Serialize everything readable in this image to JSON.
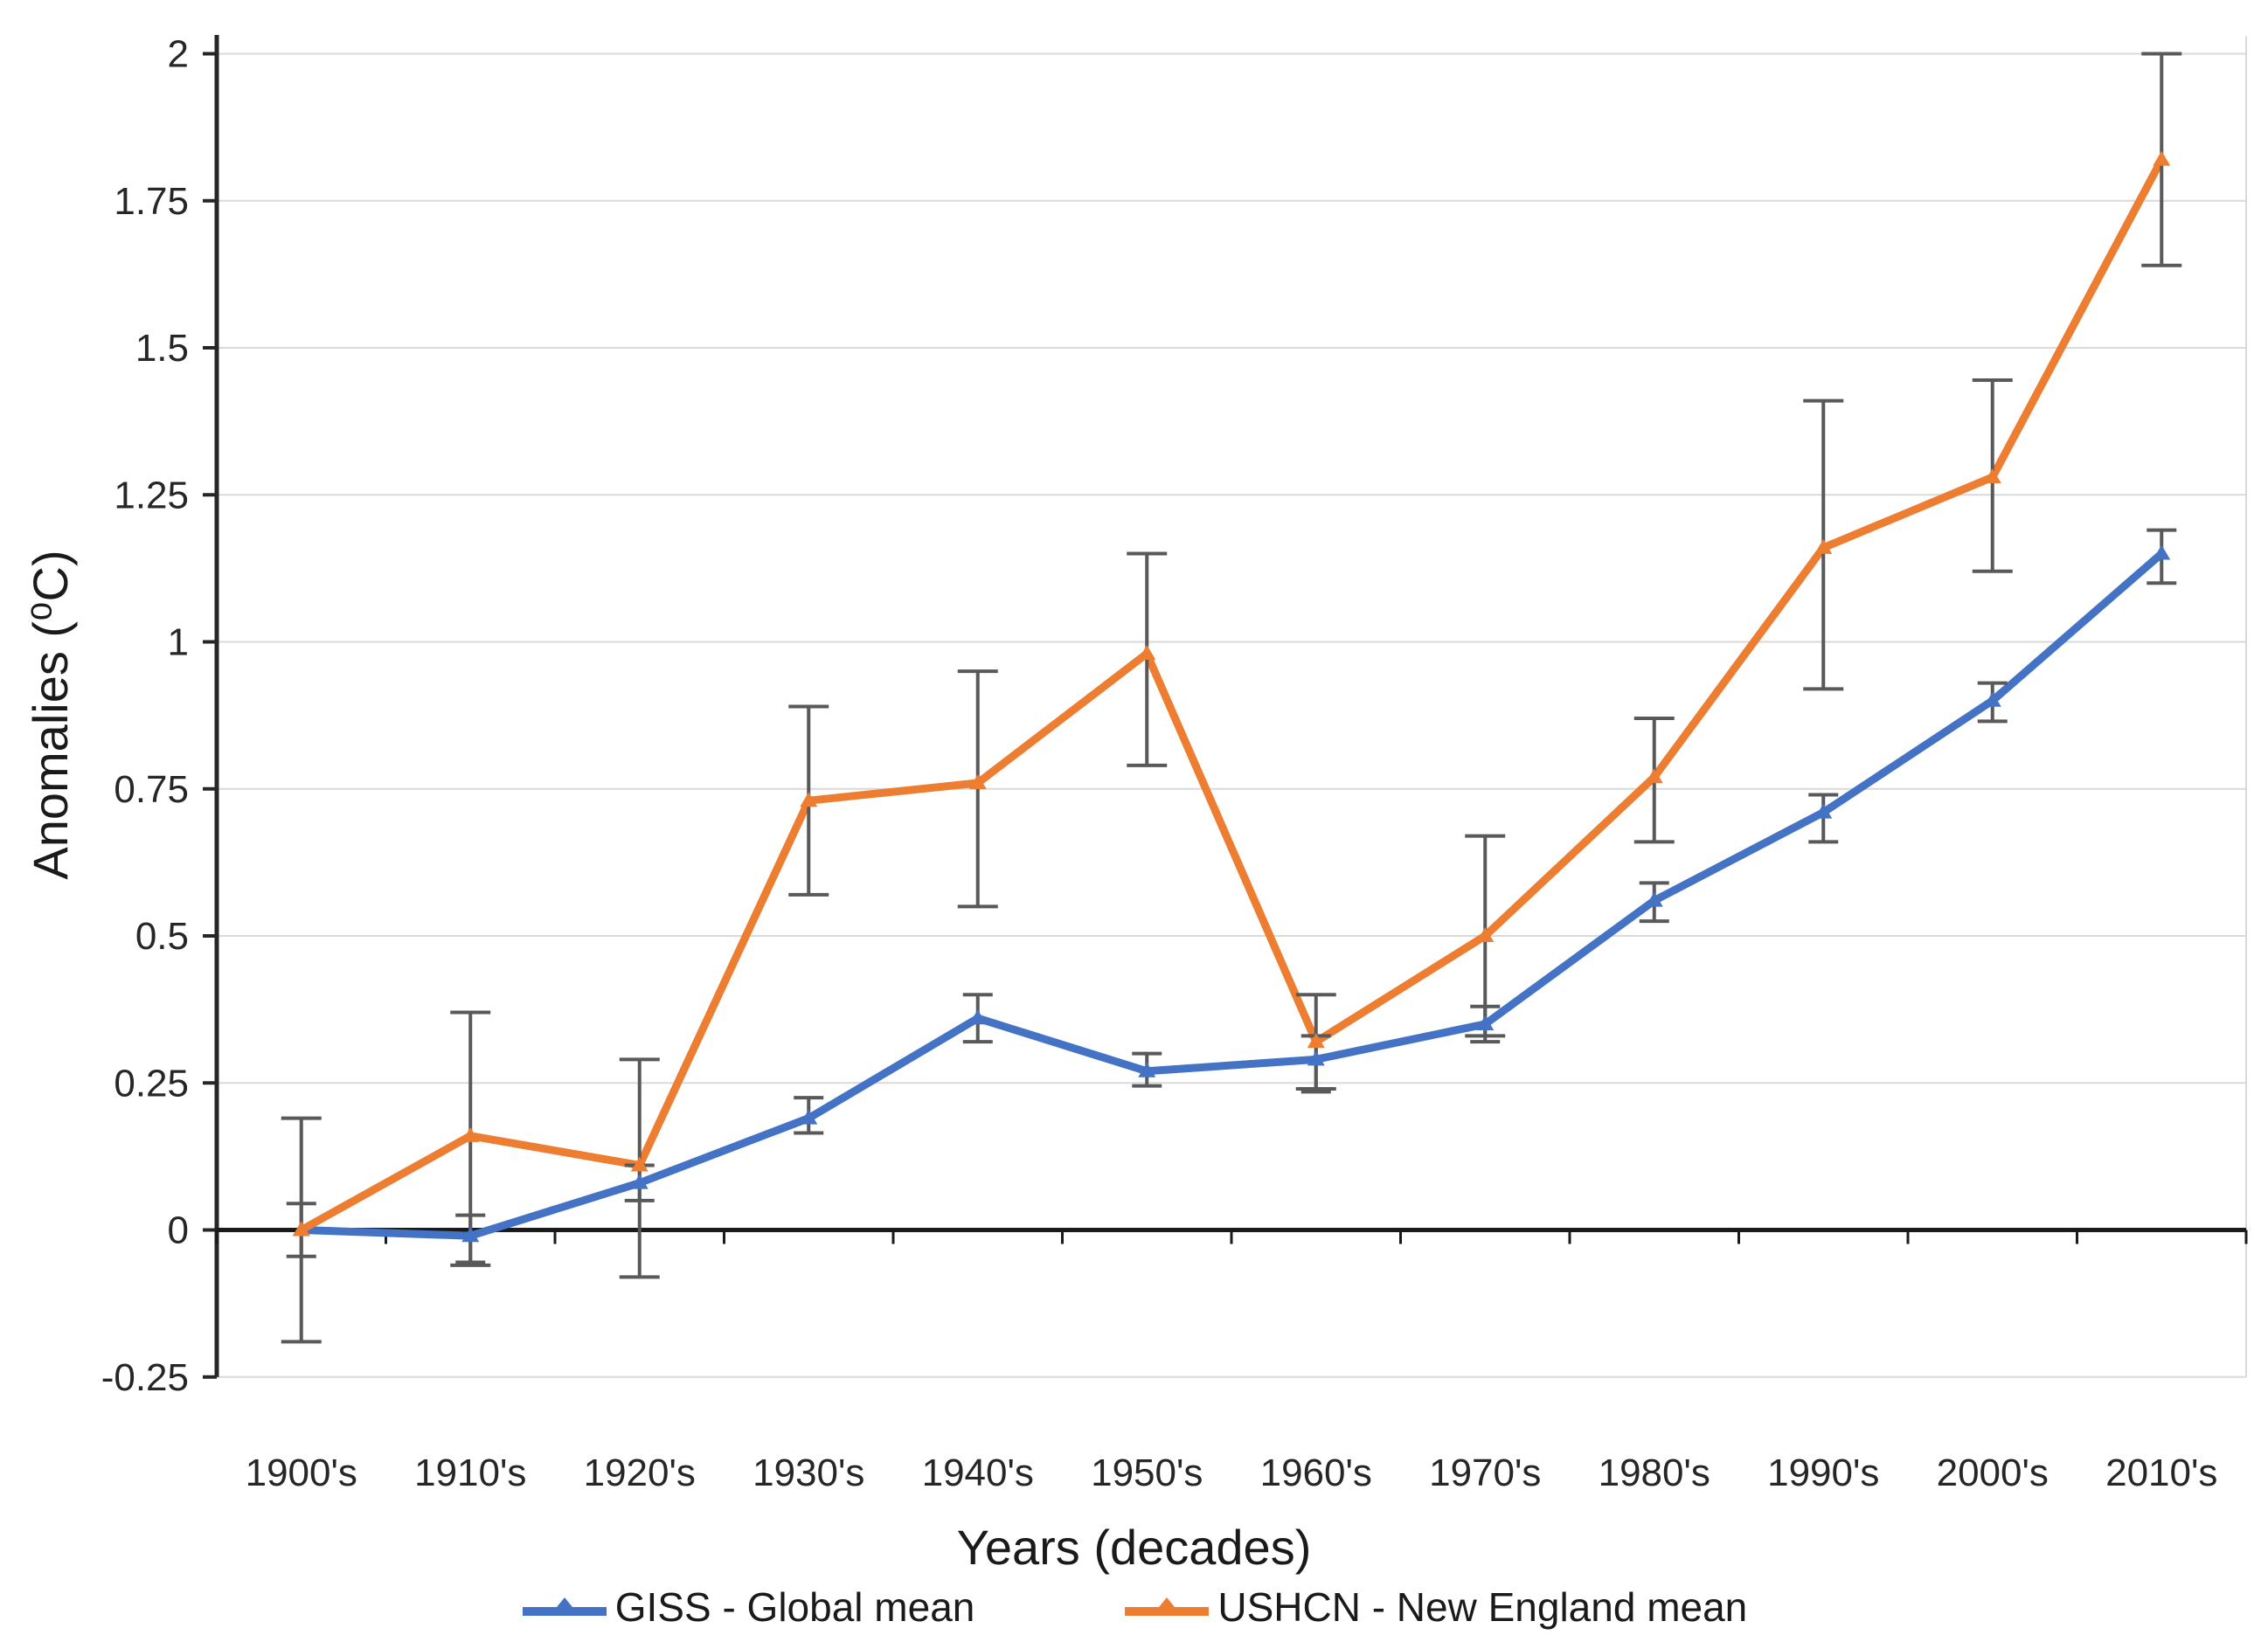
{
  "figure": {
    "x_axis_title": "Years (decades)",
    "y_axis_title": "Anomalies (⁰C)"
  },
  "chart_data": {
    "type": "line",
    "title": "",
    "xlabel": "Years (decades)",
    "ylabel": "Anomalies (⁰C)",
    "categories": [
      "1900's",
      "1910's",
      "1920's",
      "1930's",
      "1940's",
      "1950's",
      "1960's",
      "1970's",
      "1980's",
      "1990's",
      "2000's",
      "2010's"
    ],
    "series": [
      {
        "name": "GISS - Global mean",
        "color": "#4472C4",
        "marker": "triangle",
        "values": [
          0.0,
          -0.01,
          0.08,
          0.19,
          0.36,
          0.27,
          0.29,
          0.35,
          0.56,
          0.71,
          0.9,
          1.15
        ],
        "err_up": [
          0.045,
          0.035,
          0.03,
          0.035,
          0.04,
          0.03,
          0.04,
          0.03,
          0.03,
          0.03,
          0.03,
          0.04
        ],
        "err_down": [
          0.045,
          0.045,
          0.03,
          0.025,
          0.04,
          0.025,
          0.055,
          0.03,
          0.035,
          0.05,
          0.035,
          0.05
        ]
      },
      {
        "name": "USHCN - New England mean",
        "color": "#ED7D31",
        "marker": "triangle",
        "values": [
          0.0,
          0.16,
          0.11,
          0.73,
          0.76,
          0.98,
          0.32,
          0.5,
          0.77,
          1.16,
          1.28,
          1.82
        ],
        "err_up": [
          0.19,
          0.21,
          0.18,
          0.16,
          0.19,
          0.17,
          0.08,
          0.17,
          0.1,
          0.25,
          0.165,
          0.18
        ],
        "err_down": [
          0.19,
          0.22,
          0.19,
          0.16,
          0.21,
          0.19,
          0.08,
          0.17,
          0.11,
          0.24,
          0.16,
          0.18
        ]
      }
    ],
    "ylim": [
      -0.25,
      2.03
    ],
    "ytick_step": 0.25,
    "yticks": [
      "2",
      "1.75",
      "1.5",
      "1.25",
      "1",
      "0.75",
      "0.5",
      "0.25",
      "0",
      "-0.25"
    ],
    "grid": true,
    "legend_position": "bottom",
    "colors": {
      "error_bar": "#58595B",
      "gridline": "#D9D9D9",
      "axis": "#262626",
      "zero_line": "#1A1A1A",
      "text": "#262626"
    }
  }
}
